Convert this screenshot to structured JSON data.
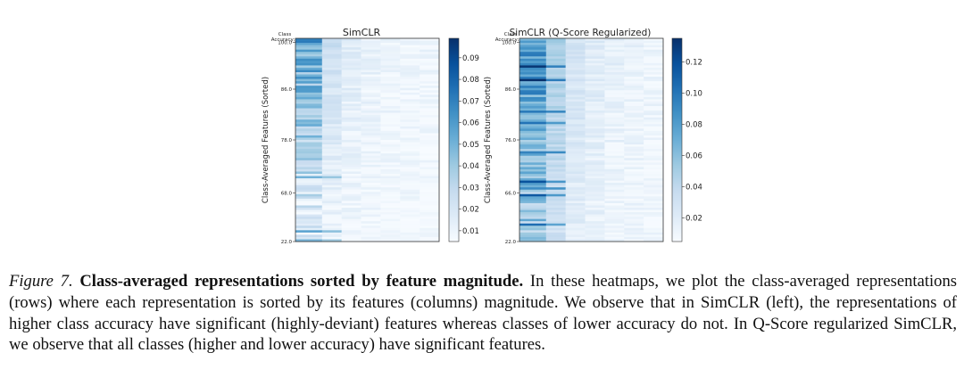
{
  "figure": {
    "y_axis_label": "Class-Averaged Features (Sorted)",
    "class_header": [
      "Class",
      "Accuracy:"
    ]
  },
  "chart_data": [
    {
      "type": "heatmap",
      "title": "SimCLR",
      "ylabel": "Class-Averaged Features (Sorted)",
      "y_ticks": [
        "100.0",
        "86.0",
        "78.0",
        "68.0",
        "22.0"
      ],
      "colorbar_ticks": [
        "0.09",
        "0.08",
        "0.07",
        "0.06",
        "0.05",
        "0.04",
        "0.03",
        "0.02",
        "0.01"
      ],
      "colorbar_range": [
        0.005,
        0.099
      ],
      "columns": 7,
      "rows": 90,
      "colormap": [
        "#f7fbff",
        "#deebf7",
        "#c6dbef",
        "#9ecae1",
        "#6baed6",
        "#4292c6",
        "#2171b5",
        "#08519c",
        "#08306b"
      ]
    },
    {
      "type": "heatmap",
      "title": "SimCLR (Q-Score Regularized)",
      "ylabel": "Class-Averaged Features (Sorted)",
      "y_ticks": [
        "100.0",
        "86.0",
        "76.0",
        "66.0",
        "22.0"
      ],
      "colorbar_ticks": [
        "0.12",
        "0.10",
        "0.08",
        "0.06",
        "0.04",
        "0.02"
      ],
      "colorbar_range": [
        0.005,
        0.135
      ],
      "columns": 7,
      "rows": 90,
      "colormap": [
        "#f7fbff",
        "#deebf7",
        "#c6dbef",
        "#9ecae1",
        "#6baed6",
        "#4292c6",
        "#2171b5",
        "#08519c",
        "#08306b"
      ]
    }
  ],
  "caption": {
    "label": "Figure 7.",
    "title": "Class-averaged representations sorted by feature magnitude.",
    "text": "In these heatmaps, we plot the class-averaged representations (rows) where each representation is sorted by its features (columns) magnitude. We observe that in SimCLR (left), the representations of higher class accuracy have significant (highly-deviant) features whereas classes of lower accuracy do not. In Q-Score regularized SimCLR, we observe that all classes (higher and lower accuracy) have significant features."
  }
}
